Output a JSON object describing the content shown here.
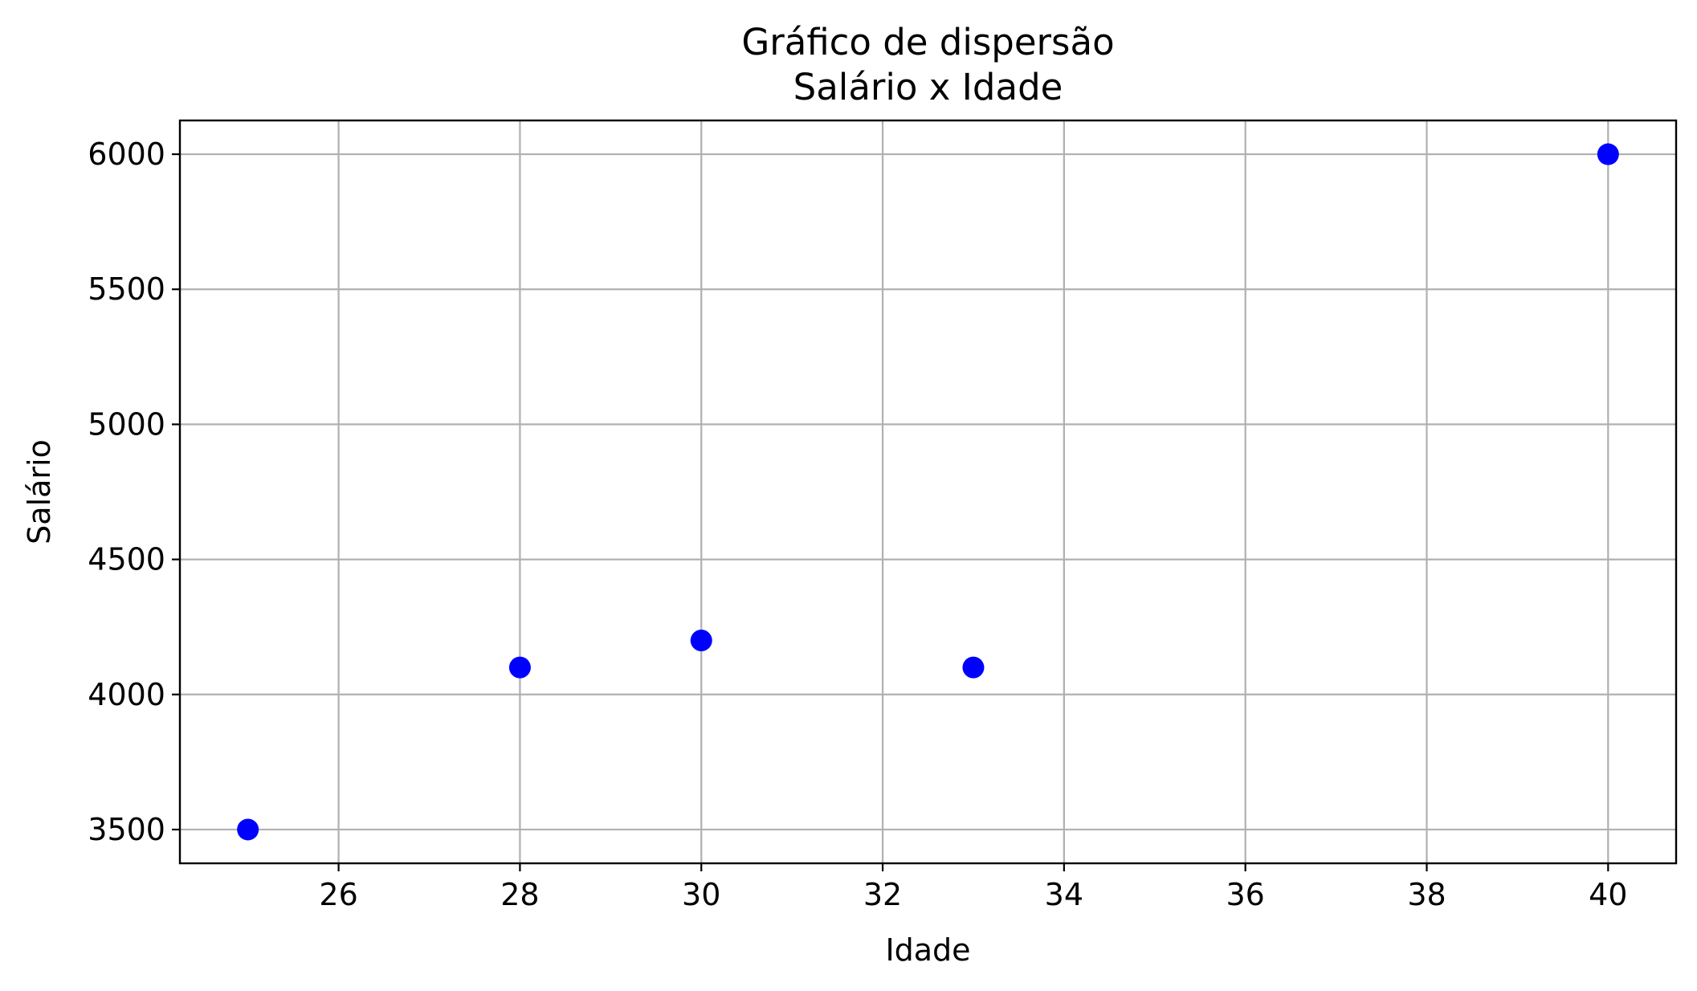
{
  "chart_data": {
    "type": "scatter",
    "title": [
      "Gráfico de dispersão",
      "Salário x Idade"
    ],
    "xlabel": "Idade",
    "ylabel": "Salário",
    "x": [
      25,
      28,
      30,
      33,
      40
    ],
    "y": [
      3500,
      4100,
      4200,
      4100,
      6000
    ],
    "xlim": [
      24.25,
      40.75
    ],
    "ylim": [
      3375,
      6125
    ],
    "xticks": [
      26,
      28,
      30,
      32,
      34,
      36,
      38,
      40
    ],
    "yticks": [
      3500,
      4000,
      4500,
      5000,
      5500,
      6000
    ],
    "grid": true,
    "marker_color": "#0000ff"
  }
}
